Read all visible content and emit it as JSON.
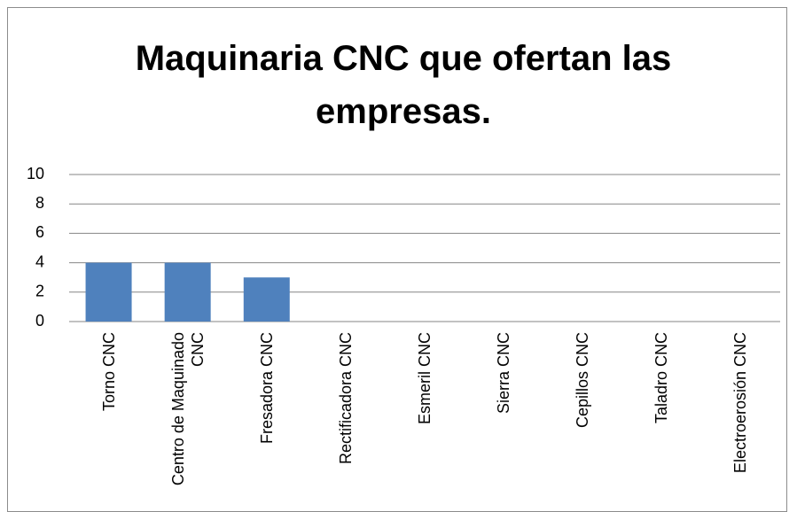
{
  "chart_data": {
    "type": "bar",
    "title": "Maquinaria CNC que ofertan las empresas.",
    "categories": [
      "Torno CNC",
      "Centro de Maquinado CNC",
      "Fresadora CNC",
      "Rectificadora CNC",
      "Esmeril CNC",
      "Sierra CNC",
      "Cepillos CNC",
      "Taladro CNC",
      "Electroerosión CNC"
    ],
    "values": [
      4,
      4,
      3,
      0,
      0,
      0,
      0,
      0,
      0
    ],
    "color": "#4f81bd",
    "ylim": [
      0,
      10
    ],
    "yticks": [
      0,
      2,
      4,
      6,
      8,
      10
    ],
    "grid": true
  }
}
